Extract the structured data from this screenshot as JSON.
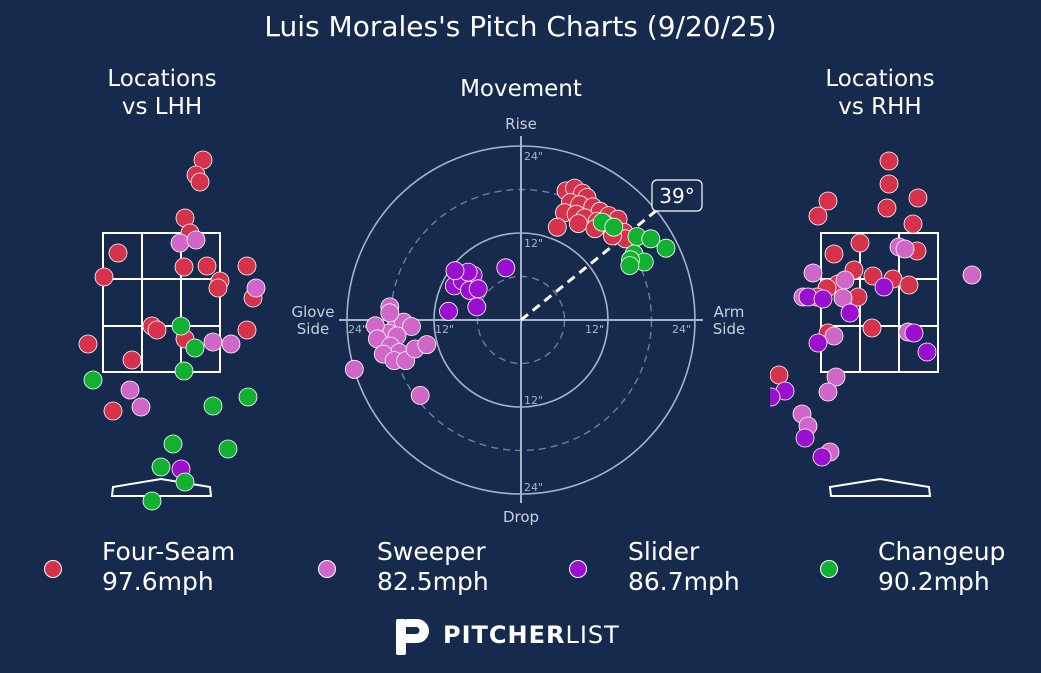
{
  "title": "Luis Morales's Pitch Charts (9/20/25)",
  "panels": {
    "lhh_title_line1": "Locations",
    "lhh_title_line2": "vs LHH",
    "movement_title": "Movement",
    "rhh_title_line1": "Locations",
    "rhh_title_line2": "vs RHH"
  },
  "movement_axes": {
    "top": "Rise",
    "bottom": "Drop",
    "left_line1": "Glove",
    "left_line2": "Side",
    "right_line1": "Arm",
    "right_line2": "Side",
    "ring_labels": [
      "24\"",
      "12\"",
      "12\"",
      "24\""
    ],
    "arm_angle_label": "39°"
  },
  "legend": [
    {
      "name": "Four-Seam",
      "velo": "97.6mph",
      "color": "#d7324c"
    },
    {
      "name": "Sweeper",
      "velo": "82.5mph",
      "color": "#d066c8"
    },
    {
      "name": "Slider",
      "velo": "86.7mph",
      "color": "#9b10d0"
    },
    {
      "name": "Changeup",
      "velo": "90.2mph",
      "color": "#13b132"
    }
  ],
  "logo": {
    "bold": "PITCHER",
    "light": "LIST",
    "glyph": "P"
  },
  "chart_data": [
    {
      "type": "scatter",
      "title": "Locations vs LHH",
      "note": "pitch locations, catcher's view; zone box is 3x3 grid",
      "points": [
        {
          "pitch": "Four-Seam",
          "x": 203,
          "y": 160
        },
        {
          "pitch": "Four-Seam",
          "x": 196,
          "y": 175
        },
        {
          "pitch": "Four-Seam",
          "x": 200,
          "y": 182
        },
        {
          "pitch": "Four-Seam",
          "x": 185,
          "y": 218
        },
        {
          "pitch": "Four-Seam",
          "x": 190,
          "y": 233
        },
        {
          "pitch": "Four-Seam",
          "x": 118,
          "y": 253
        },
        {
          "pitch": "Four-Seam",
          "x": 104,
          "y": 277
        },
        {
          "pitch": "Four-Seam",
          "x": 184,
          "y": 267
        },
        {
          "pitch": "Four-Seam",
          "x": 207,
          "y": 266
        },
        {
          "pitch": "Four-Seam",
          "x": 247,
          "y": 266
        },
        {
          "pitch": "Four-Seam",
          "x": 220,
          "y": 281
        },
        {
          "pitch": "Four-Seam",
          "x": 218,
          "y": 288
        },
        {
          "pitch": "Four-Seam",
          "x": 253,
          "y": 298
        },
        {
          "pitch": "Four-Seam",
          "x": 152,
          "y": 326
        },
        {
          "pitch": "Four-Seam",
          "x": 157,
          "y": 330
        },
        {
          "pitch": "Four-Seam",
          "x": 185,
          "y": 339
        },
        {
          "pitch": "Four-Seam",
          "x": 247,
          "y": 330
        },
        {
          "pitch": "Four-Seam",
          "x": 88,
          "y": 344
        },
        {
          "pitch": "Four-Seam",
          "x": 132,
          "y": 360
        },
        {
          "pitch": "Four-Seam",
          "x": 113,
          "y": 411
        },
        {
          "pitch": "Sweeper",
          "x": 180,
          "y": 243
        },
        {
          "pitch": "Sweeper",
          "x": 196,
          "y": 240
        },
        {
          "pitch": "Sweeper",
          "x": 256,
          "y": 288
        },
        {
          "pitch": "Sweeper",
          "x": 213,
          "y": 342
        },
        {
          "pitch": "Sweeper",
          "x": 231,
          "y": 344
        },
        {
          "pitch": "Sweeper",
          "x": 130,
          "y": 390
        },
        {
          "pitch": "Sweeper",
          "x": 141,
          "y": 407
        },
        {
          "pitch": "Slider",
          "x": 181,
          "y": 469
        },
        {
          "pitch": "Changeup",
          "x": 181,
          "y": 326
        },
        {
          "pitch": "Changeup",
          "x": 195,
          "y": 348
        },
        {
          "pitch": "Changeup",
          "x": 184,
          "y": 371
        },
        {
          "pitch": "Changeup",
          "x": 93,
          "y": 380
        },
        {
          "pitch": "Changeup",
          "x": 213,
          "y": 406
        },
        {
          "pitch": "Changeup",
          "x": 248,
          "y": 397
        },
        {
          "pitch": "Changeup",
          "x": 173,
          "y": 444
        },
        {
          "pitch": "Changeup",
          "x": 228,
          "y": 449
        },
        {
          "pitch": "Changeup",
          "x": 161,
          "y": 467
        },
        {
          "pitch": "Changeup",
          "x": 185,
          "y": 482
        },
        {
          "pitch": "Changeup",
          "x": 152,
          "y": 501
        }
      ]
    },
    {
      "type": "scatter",
      "title": "Movement",
      "xlabel": "Glove Side / Arm Side (inches)",
      "ylabel": "Drop / Rise (inches)",
      "xlim": [
        -24,
        24
      ],
      "ylim": [
        -24,
        24
      ],
      "arm_angle_deg": 39,
      "points": [
        {
          "pitch": "Four-Seam",
          "x": 6.2,
          "y": 17.8
        },
        {
          "pitch": "Four-Seam",
          "x": 7.4,
          "y": 18.2
        },
        {
          "pitch": "Four-Seam",
          "x": 8.5,
          "y": 17.5
        },
        {
          "pitch": "Four-Seam",
          "x": 9.1,
          "y": 16.9
        },
        {
          "pitch": "Four-Seam",
          "x": 6.8,
          "y": 16.2
        },
        {
          "pitch": "Four-Seam",
          "x": 8.1,
          "y": 15.9
        },
        {
          "pitch": "Four-Seam",
          "x": 9.9,
          "y": 15.6
        },
        {
          "pitch": "Four-Seam",
          "x": 10.9,
          "y": 15.0
        },
        {
          "pitch": "Four-Seam",
          "x": 12.1,
          "y": 14.4
        },
        {
          "pitch": "Four-Seam",
          "x": 13.4,
          "y": 13.9
        },
        {
          "pitch": "Four-Seam",
          "x": 6.0,
          "y": 14.8
        },
        {
          "pitch": "Four-Seam",
          "x": 7.6,
          "y": 14.6
        },
        {
          "pitch": "Four-Seam",
          "x": 8.8,
          "y": 14.1
        },
        {
          "pitch": "Four-Seam",
          "x": 10.5,
          "y": 13.6
        },
        {
          "pitch": "Four-Seam",
          "x": 11.8,
          "y": 13.1
        },
        {
          "pitch": "Four-Seam",
          "x": 13.1,
          "y": 12.4
        },
        {
          "pitch": "Four-Seam",
          "x": 14.2,
          "y": 12.1
        },
        {
          "pitch": "Four-Seam",
          "x": 5.0,
          "y": 12.8
        },
        {
          "pitch": "Four-Seam",
          "x": 7.9,
          "y": 13.3
        },
        {
          "pitch": "Four-Seam",
          "x": 14.4,
          "y": 11.2
        },
        {
          "pitch": "Four-Seam",
          "x": 12.6,
          "y": 11.6
        },
        {
          "pitch": "Four-Seam",
          "x": 10.2,
          "y": 12.6
        },
        {
          "pitch": "Sweeper",
          "x": -17.3,
          "y": -1.0
        },
        {
          "pitch": "Sweeper",
          "x": -16.2,
          "y": -0.3
        },
        {
          "pitch": "Sweeper",
          "x": -18.3,
          "y": -1.8
        },
        {
          "pitch": "Sweeper",
          "x": -15.1,
          "y": -0.9
        },
        {
          "pitch": "Sweeper",
          "x": -20.1,
          "y": -0.8
        },
        {
          "pitch": "Sweeper",
          "x": -19.8,
          "y": -2.6
        },
        {
          "pitch": "Sweeper",
          "x": -17.1,
          "y": -2.2
        },
        {
          "pitch": "Sweeper",
          "x": -18.0,
          "y": -3.6
        },
        {
          "pitch": "Sweeper",
          "x": -16.8,
          "y": -4.5
        },
        {
          "pitch": "Sweeper",
          "x": -19.0,
          "y": -4.7
        },
        {
          "pitch": "Sweeper",
          "x": -17.5,
          "y": -5.6
        },
        {
          "pitch": "Sweeper",
          "x": -15.9,
          "y": -5.6
        },
        {
          "pitch": "Sweeper",
          "x": -14.6,
          "y": -4.0
        },
        {
          "pitch": "Sweeper",
          "x": -13.0,
          "y": -3.4
        },
        {
          "pitch": "Sweeper",
          "x": -18.1,
          "y": 1.8
        },
        {
          "pitch": "Sweeper",
          "x": -18.1,
          "y": 1.0
        },
        {
          "pitch": "Sweeper",
          "x": -23.0,
          "y": -6.8
        },
        {
          "pitch": "Sweeper",
          "x": -13.9,
          "y": -10.4
        },
        {
          "pitch": "Slider",
          "x": -9.2,
          "y": 4.7
        },
        {
          "pitch": "Slider",
          "x": -8.1,
          "y": 5.4
        },
        {
          "pitch": "Slider",
          "x": -6.6,
          "y": 6.2
        },
        {
          "pitch": "Slider",
          "x": -7.1,
          "y": 4.1
        },
        {
          "pitch": "Slider",
          "x": -5.9,
          "y": 4.3
        },
        {
          "pitch": "Slider",
          "x": -7.3,
          "y": 6.6
        },
        {
          "pitch": "Slider",
          "x": -6.1,
          "y": 1.8
        },
        {
          "pitch": "Slider",
          "x": -10.0,
          "y": 1.2
        },
        {
          "pitch": "Slider",
          "x": -9.1,
          "y": 6.8
        },
        {
          "pitch": "Slider",
          "x": -2.1,
          "y": 7.2
        },
        {
          "pitch": "Changeup",
          "x": 11.2,
          "y": 13.5
        },
        {
          "pitch": "Changeup",
          "x": 12.8,
          "y": 12.8
        },
        {
          "pitch": "Changeup",
          "x": 16.0,
          "y": 11.5
        },
        {
          "pitch": "Changeup",
          "x": 17.9,
          "y": 11.2
        },
        {
          "pitch": "Changeup",
          "x": 20.0,
          "y": 9.9
        },
        {
          "pitch": "Changeup",
          "x": 15.6,
          "y": 9.1
        },
        {
          "pitch": "Changeup",
          "x": 17.0,
          "y": 8.0
        },
        {
          "pitch": "Changeup",
          "x": 15.1,
          "y": 8.3
        },
        {
          "pitch": "Changeup",
          "x": 15.0,
          "y": 7.5
        }
      ]
    },
    {
      "type": "scatter",
      "title": "Locations vs RHH",
      "note": "pitch locations, catcher's view; zone box is 3x3 grid",
      "points": [
        {
          "pitch": "Four-Seam",
          "x": 889,
          "y": 161
        },
        {
          "pitch": "Four-Seam",
          "x": 889,
          "y": 184
        },
        {
          "pitch": "Four-Seam",
          "x": 828,
          "y": 201
        },
        {
          "pitch": "Four-Seam",
          "x": 918,
          "y": 198
        },
        {
          "pitch": "Four-Seam",
          "x": 818,
          "y": 216
        },
        {
          "pitch": "Four-Seam",
          "x": 887,
          "y": 208
        },
        {
          "pitch": "Four-Seam",
          "x": 913,
          "y": 224
        },
        {
          "pitch": "Four-Seam",
          "x": 860,
          "y": 243
        },
        {
          "pitch": "Four-Seam",
          "x": 834,
          "y": 254
        },
        {
          "pitch": "Four-Seam",
          "x": 917,
          "y": 251
        },
        {
          "pitch": "Four-Seam",
          "x": 854,
          "y": 270
        },
        {
          "pitch": "Four-Seam",
          "x": 873,
          "y": 276
        },
        {
          "pitch": "Four-Seam",
          "x": 893,
          "y": 279
        },
        {
          "pitch": "Four-Seam",
          "x": 838,
          "y": 284
        },
        {
          "pitch": "Four-Seam",
          "x": 827,
          "y": 288
        },
        {
          "pitch": "Four-Seam",
          "x": 909,
          "y": 285
        },
        {
          "pitch": "Four-Seam",
          "x": 858,
          "y": 297
        },
        {
          "pitch": "Four-Seam",
          "x": 817,
          "y": 297
        },
        {
          "pitch": "Four-Seam",
          "x": 872,
          "y": 328
        },
        {
          "pitch": "Four-Seam",
          "x": 828,
          "y": 333
        },
        {
          "pitch": "Four-Seam",
          "x": 779,
          "y": 375
        },
        {
          "pitch": "Sweeper",
          "x": 899,
          "y": 247
        },
        {
          "pitch": "Sweeper",
          "x": 905,
          "y": 249
        },
        {
          "pitch": "Sweeper",
          "x": 845,
          "y": 280
        },
        {
          "pitch": "Sweeper",
          "x": 813,
          "y": 273
        },
        {
          "pitch": "Sweeper",
          "x": 972,
          "y": 275
        },
        {
          "pitch": "Sweeper",
          "x": 803,
          "y": 297
        },
        {
          "pitch": "Sweeper",
          "x": 843,
          "y": 298
        },
        {
          "pitch": "Sweeper",
          "x": 908,
          "y": 332
        },
        {
          "pitch": "Sweeper",
          "x": 834,
          "y": 336
        },
        {
          "pitch": "Sweeper",
          "x": 836,
          "y": 377
        },
        {
          "pitch": "Sweeper",
          "x": 828,
          "y": 392
        },
        {
          "pitch": "Sweeper",
          "x": 802,
          "y": 414
        },
        {
          "pitch": "Sweeper",
          "x": 808,
          "y": 426
        },
        {
          "pitch": "Sweeper",
          "x": 830,
          "y": 452
        },
        {
          "pitch": "Slider",
          "x": 808,
          "y": 297
        },
        {
          "pitch": "Slider",
          "x": 823,
          "y": 299
        },
        {
          "pitch": "Slider",
          "x": 884,
          "y": 287
        },
        {
          "pitch": "Slider",
          "x": 850,
          "y": 313
        },
        {
          "pitch": "Slider",
          "x": 914,
          "y": 333
        },
        {
          "pitch": "Slider",
          "x": 818,
          "y": 343
        },
        {
          "pitch": "Slider",
          "x": 927,
          "y": 352
        },
        {
          "pitch": "Slider",
          "x": 785,
          "y": 391
        },
        {
          "pitch": "Slider",
          "x": 805,
          "y": 438
        },
        {
          "pitch": "Slider",
          "x": 822,
          "y": 457
        },
        {
          "pitch": "Slider",
          "x": 771,
          "y": 397
        }
      ]
    }
  ]
}
